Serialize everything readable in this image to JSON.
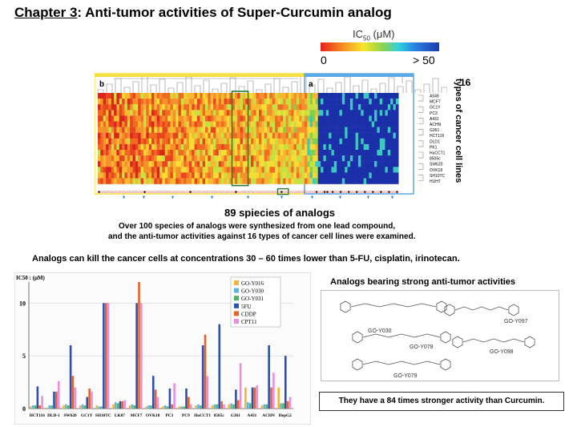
{
  "title": {
    "chapter": "Chapter 3",
    "rest": ": Anti-tumor activities of Super-Curcumin analog"
  },
  "colorbar": {
    "label": "IC",
    "label_sub": "50",
    "label_unit": " (μM)",
    "min": "0",
    "max": "> 50"
  },
  "heatmap": {
    "group_b": "b",
    "group_a": "a",
    "cell_lines": [
      "A549",
      "MCF7",
      "GC1Y",
      "PC3",
      "A431",
      "ACHN",
      "G361",
      "HCT116",
      "DLD1",
      "PK1",
      "HuCCT1",
      "8505c",
      "SW620",
      "OVK18",
      "SH10TC",
      "HUH7"
    ],
    "count_label": "16",
    "axis_label": "types of cancer cell lines",
    "x_caption": "89 spiecies of analogs"
  },
  "description": {
    "line1": "Over 100 species of analogs were synthesized from one lead compound,",
    "line2": "and the anti-tumor activities against 16 types of cancer cell lines were examined."
  },
  "statement": "Analogs can kill the cancer cells at concentrations 30 – 60 times lower than 5-FU, cisplatin, irinotecan.",
  "chart_data": {
    "type": "bar",
    "ylabel": "IC50 : (μM)",
    "ylim": [
      0,
      12
    ],
    "yticks": [
      "0",
      "5",
      "10"
    ],
    "categories": [
      "HCT116",
      "DLD-1",
      "SW620",
      "GC1Y",
      "SH10TC",
      "LK87",
      "MCF7",
      "OVK18",
      "PC3",
      "PC9",
      "HuCCT1",
      "8505c",
      "G361",
      "A431",
      "ACHN",
      "HepG2"
    ],
    "series": [
      {
        "name": "GO-Y016",
        "color": "#f0b43c",
        "values": [
          0.2,
          0.1,
          0.3,
          0.3,
          0.3,
          0.4,
          0.3,
          0.2,
          0.2,
          0.2,
          0.3,
          0.3,
          0.4,
          2.0,
          0.3,
          2.0
        ]
      },
      {
        "name": "GO-Y030",
        "color": "#5ab4e6",
        "values": [
          0.3,
          0.3,
          0.4,
          0.4,
          0.2,
          0.6,
          0.4,
          0.3,
          0.3,
          0.2,
          0.4,
          0.4,
          0.5,
          0.6,
          0.4,
          0.5
        ]
      },
      {
        "name": "GO-Y031",
        "color": "#50b464",
        "values": [
          0.3,
          0.3,
          0.3,
          0.3,
          0.2,
          0.5,
          0.3,
          0.3,
          0.2,
          0.2,
          0.3,
          0.4,
          0.4,
          0.5,
          0.4,
          0.5
        ]
      },
      {
        "name": "5FU",
        "color": "#2c50b0",
        "values": [
          2.1,
          1.6,
          6.0,
          1.1,
          10.0,
          0.7,
          10.0,
          3.1,
          1.9,
          1.9,
          6.0,
          8.0,
          1.8,
          2.0,
          6.0,
          5.0
        ]
      },
      {
        "name": "CDDP",
        "color": "#e8602c",
        "values": [
          0.3,
          1.6,
          3.1,
          1.9,
          10.0,
          0.7,
          12.0,
          1.8,
          0.4,
          1.1,
          7.0,
          0.7,
          0.8,
          2.0,
          2.0,
          0.7
        ]
      },
      {
        "name": "CPT11",
        "color": "#e890e0",
        "values": [
          1.2,
          2.6,
          2.0,
          1.6,
          10.0,
          0.8,
          10.0,
          1.1,
          2.4,
          0.4,
          3.1,
          0.4,
          4.3,
          2.2,
          3.4,
          1.1
        ]
      }
    ]
  },
  "structures": {
    "heading": "Analogs bearing strong anti-tumor activities",
    "labels": [
      "GO-Y030",
      "GO-Y078",
      "GO-Y079",
      "GO-Y097",
      "GO-Y098"
    ]
  },
  "conclusion": "They have a 84 times stronger activity than Curcumin."
}
